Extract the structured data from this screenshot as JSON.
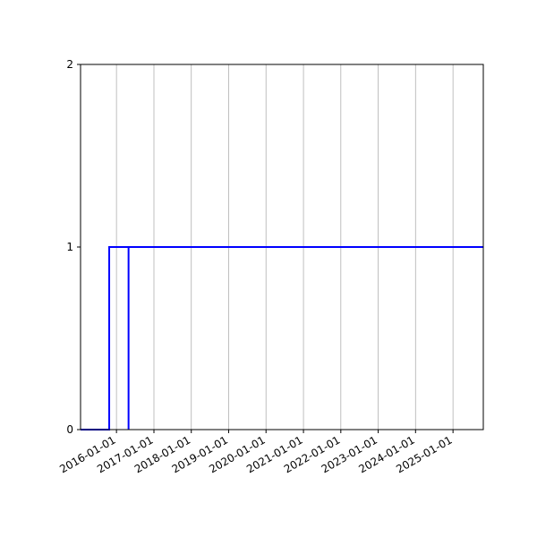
{
  "chart_data": {
    "type": "line",
    "title": "",
    "xlabel": "",
    "ylabel": "",
    "xlim": [
      "2015-01-15",
      "2025-10-24"
    ],
    "ylim": [
      0,
      2
    ],
    "yticks": [
      "0",
      "1",
      "2"
    ],
    "xticks": [
      "2016-01-01",
      "2017-01-01",
      "2018-01-01",
      "2019-01-01",
      "2020-01-01",
      "2021-01-01",
      "2022-01-01",
      "2023-01-01",
      "2024-01-01",
      "2025-01-01"
    ],
    "grid": "x",
    "series": [
      {
        "color": "#0000ff",
        "step": true,
        "points": [
          [
            "2015-01-15",
            0
          ],
          [
            "2015-10-22",
            0
          ],
          [
            "2015-10-22",
            1
          ],
          [
            "2025-10-24",
            1
          ]
        ]
      },
      {
        "color": "#0000ff",
        "step": true,
        "points": [
          [
            "2016-04-28",
            0
          ],
          [
            "2016-04-28",
            1
          ],
          [
            "2025-10-24",
            1
          ]
        ]
      }
    ]
  }
}
